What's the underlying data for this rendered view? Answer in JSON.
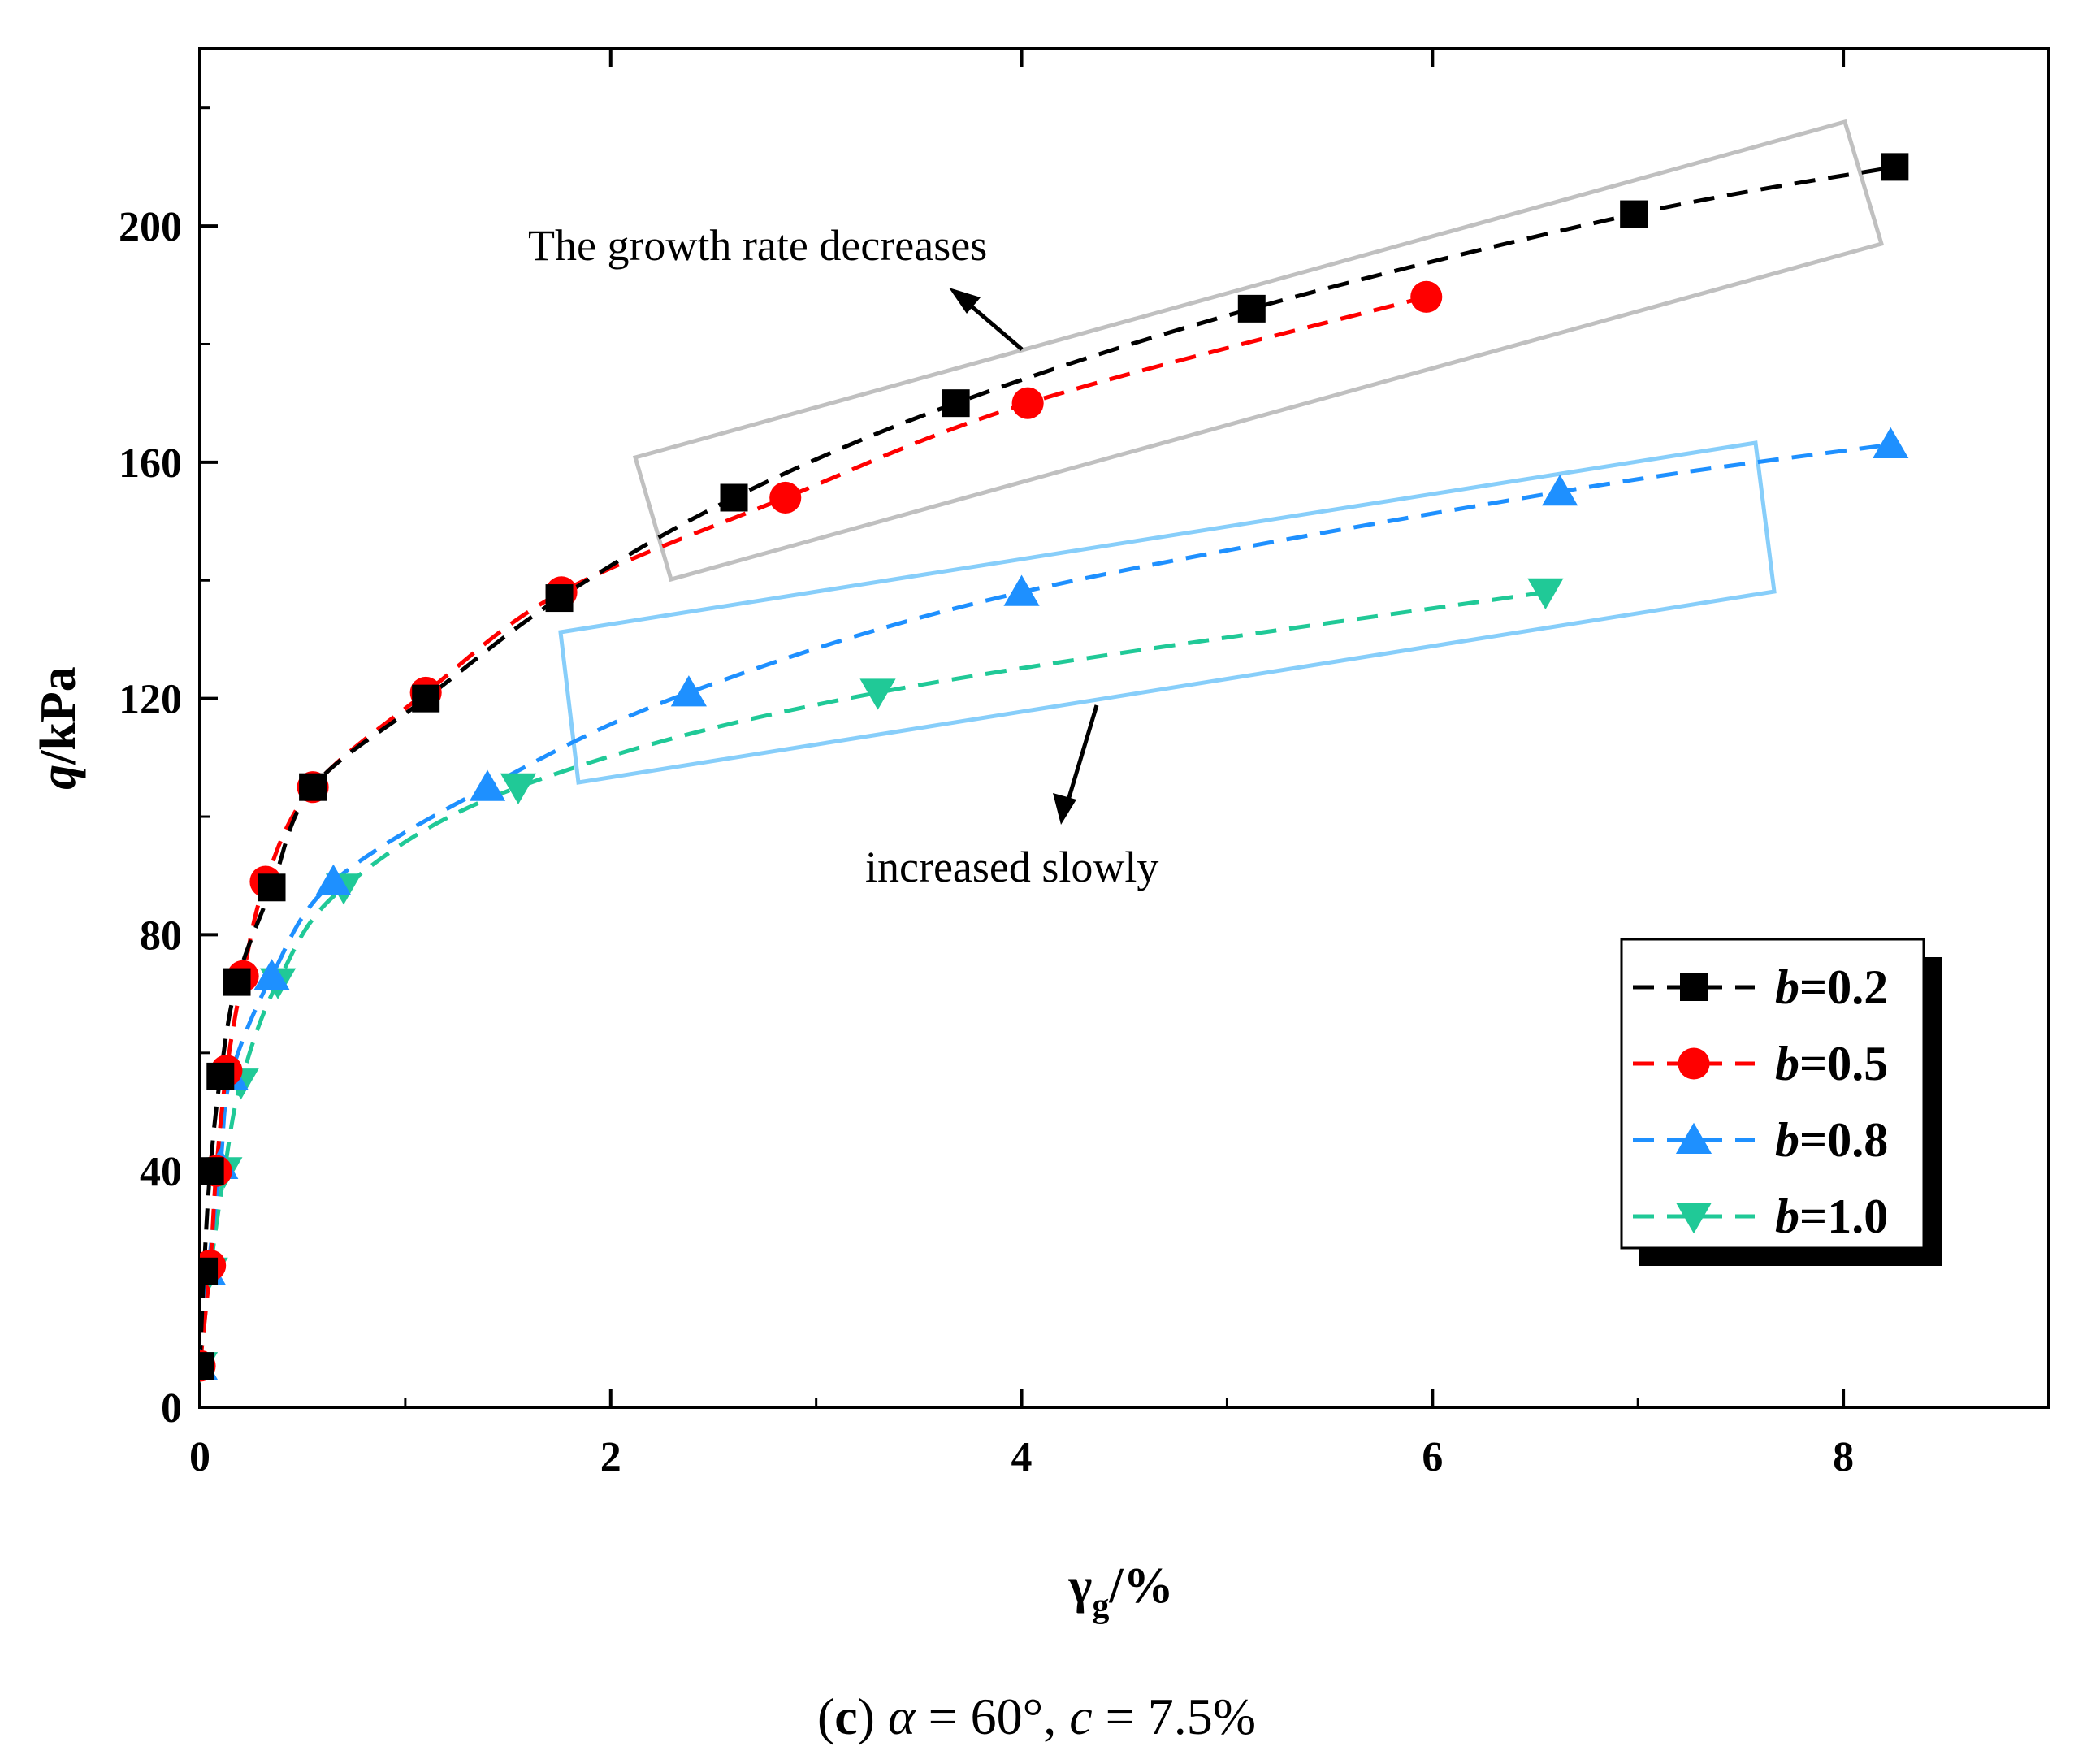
{
  "chart_data": {
    "type": "line",
    "title": "",
    "xlabel": "γg/%",
    "xlabel_main": "γ",
    "xlabel_sub": "g",
    "xlabel_unit": "/%",
    "ylabel": "q/kPa",
    "ylabel_var": "q",
    "ylabel_unit": "/kPa",
    "xlim": [
      0,
      9
    ],
    "ylim": [
      0,
      230
    ],
    "xticks": [
      0,
      2,
      4,
      6,
      8
    ],
    "yticks": [
      0,
      40,
      80,
      120,
      160,
      200
    ],
    "legend_position": "bottom-right",
    "series": [
      {
        "name": "b=0.2",
        "name_var": "b",
        "name_val": "=0.2",
        "marker": "square",
        "color": "#000000",
        "x": [
          0.0,
          0.02,
          0.05,
          0.1,
          0.18,
          0.35,
          0.55,
          1.1,
          1.75,
          2.6,
          3.68,
          5.12,
          6.98,
          8.25
        ],
        "y": [
          7,
          23,
          40,
          56,
          72,
          88,
          105,
          120,
          137,
          154,
          170,
          186,
          202,
          210
        ]
      },
      {
        "name": "b=0.5",
        "name_var": "b",
        "name_val": "=0.5",
        "marker": "circle",
        "color": "#ff0000",
        "x": [
          0.0,
          0.05,
          0.08,
          0.13,
          0.21,
          0.32,
          0.55,
          1.1,
          1.76,
          2.85,
          4.03,
          5.97
        ],
        "y": [
          7,
          24,
          40,
          57,
          73,
          89,
          105,
          121,
          138,
          154,
          170,
          188
        ]
      },
      {
        "name": "b=0.8",
        "name_var": "b",
        "name_val": "=0.8",
        "marker": "triangle-up",
        "color": "#1e90ff",
        "x": [
          0.0,
          0.04,
          0.1,
          0.15,
          0.35,
          0.65,
          1.4,
          2.38,
          4.0,
          6.62,
          8.23
        ],
        "y": [
          7,
          23,
          41,
          56,
          73,
          89,
          105,
          121,
          138,
          155,
          163
        ]
      },
      {
        "name": "b=1.0",
        "name_var": "b",
        "name_val": "=1.0",
        "marker": "triangle-down",
        "color": "#20c997",
        "x": [
          0.0,
          0.05,
          0.12,
          0.2,
          0.38,
          0.7,
          1.55,
          3.3,
          6.55
        ],
        "y": [
          7,
          23,
          40,
          55,
          72,
          88,
          105,
          121,
          138
        ]
      }
    ],
    "annotations": [
      {
        "text": "The growth rate decreases",
        "box_color": "#c0c0c0"
      },
      {
        "text": "increased slowly",
        "box_color": "#87cefa"
      }
    ]
  },
  "caption": {
    "prefix": "(",
    "letter": "c",
    "suffix": ") ",
    "alpha_sym": "α",
    "alpha_val": " = 60°, ",
    "c_sym": "c",
    "c_val": " = 7.5%"
  }
}
